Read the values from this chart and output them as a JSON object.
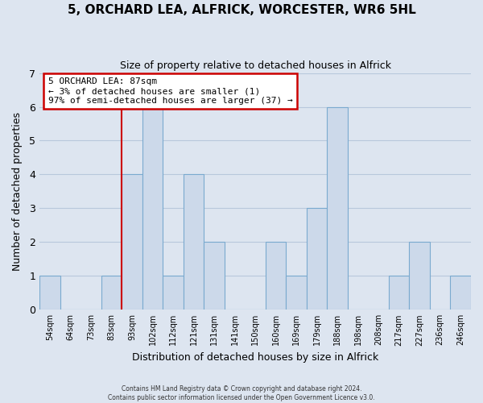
{
  "title1": "5, ORCHARD LEA, ALFRICK, WORCESTER, WR6 5HL",
  "title2": "Size of property relative to detached houses in Alfrick",
  "xlabel": "Distribution of detached houses by size in Alfrick",
  "ylabel": "Number of detached properties",
  "bin_labels": [
    "54sqm",
    "64sqm",
    "73sqm",
    "83sqm",
    "93sqm",
    "102sqm",
    "112sqm",
    "121sqm",
    "131sqm",
    "141sqm",
    "150sqm",
    "160sqm",
    "169sqm",
    "179sqm",
    "188sqm",
    "198sqm",
    "208sqm",
    "217sqm",
    "227sqm",
    "236sqm",
    "246sqm"
  ],
  "bar_heights": [
    1,
    0,
    0,
    1,
    4,
    6,
    1,
    4,
    2,
    0,
    0,
    2,
    1,
    3,
    6,
    0,
    0,
    1,
    2,
    0,
    1
  ],
  "bar_color": "#ccd9ea",
  "bar_edge_color": "#7aaacf",
  "grid_color": "#b8c8dc",
  "bg_color": "#dde5f0",
  "property_line_color": "#cc0000",
  "property_line_index": 3,
  "annotation_line1": "5 ORCHARD LEA: 87sqm",
  "annotation_line2": "← 3% of detached houses are smaller (1)",
  "annotation_line3": "97% of semi-detached houses are larger (37) →",
  "annotation_box_color": "#ffffff",
  "annotation_border_color": "#cc0000",
  "ylim": [
    0,
    7
  ],
  "yticks": [
    0,
    1,
    2,
    3,
    4,
    5,
    6,
    7
  ],
  "footer1": "Contains HM Land Registry data © Crown copyright and database right 2024.",
  "footer2": "Contains public sector information licensed under the Open Government Licence v3.0."
}
